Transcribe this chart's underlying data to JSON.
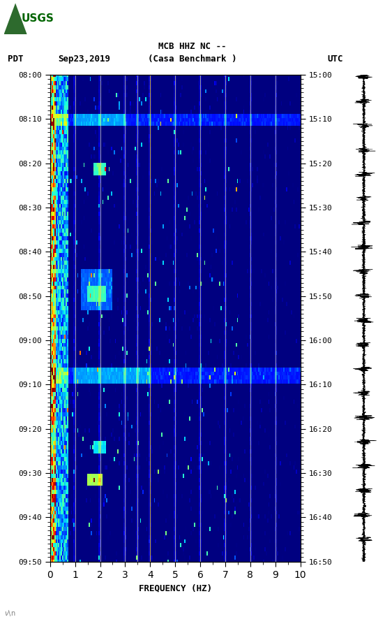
{
  "title_line1": "MCB HHZ NC --",
  "title_line2": "(Casa Benchmark )",
  "left_label": "PDT",
  "date_label": "Sep23,2019",
  "right_label": "UTC",
  "xlabel": "FREQUENCY (HZ)",
  "pdt_start": "08:00",
  "pdt_end": "09:50",
  "utc_start": "15:00",
  "utc_end": "16:50",
  "freq_min": 0,
  "freq_max": 10,
  "time_ticks_pdt": [
    "08:00",
    "08:10",
    "08:20",
    "08:30",
    "08:40",
    "08:50",
    "09:00",
    "09:10",
    "09:20",
    "09:30",
    "09:40",
    "09:50"
  ],
  "time_ticks_utc": [
    "15:00",
    "15:10",
    "15:20",
    "15:30",
    "15:40",
    "15:50",
    "16:00",
    "16:10",
    "16:20",
    "16:30",
    "16:40",
    "16:50"
  ],
  "freq_ticks": [
    0,
    1,
    2,
    3,
    4,
    5,
    6,
    7,
    8,
    9,
    10
  ],
  "background_color": "#ffffff",
  "spectrogram_bg": "#00008B",
  "vertical_lines_freq": [
    1.0,
    2.0,
    3.0,
    3.5,
    4.0,
    5.0,
    6.0,
    7.0,
    8.0,
    9.0
  ],
  "usgs_logo_color": "#006400",
  "figure_width": 5.52,
  "figure_height": 8.93,
  "dpi": 100
}
